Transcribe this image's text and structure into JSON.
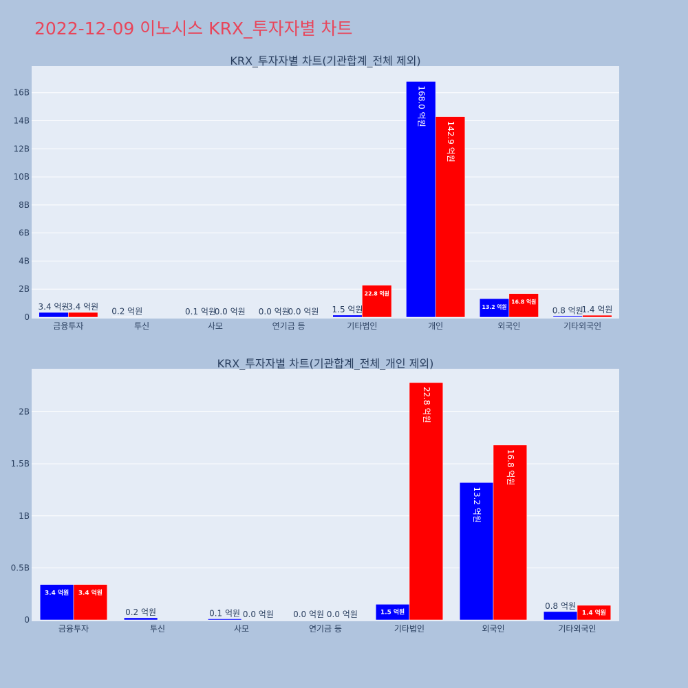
{
  "page_title": "2022-12-09 이노시스 KRX_투자자별 차트",
  "colors": {
    "title": "#e8455a",
    "series_a": "#0000ff",
    "series_b": "#ff0000",
    "plot_bg": "#e5ecf6",
    "page_bg": "#b0c4de"
  },
  "chart_data": [
    {
      "type": "bar",
      "title": "KRX_투자자별 차트(기관합계_전체 제외)",
      "categories": [
        "금융투자",
        "투신",
        "사모",
        "연기금 등",
        "기타법인",
        "개인",
        "외국인",
        "기타외국인"
      ],
      "series": [
        {
          "values": [
            340000000,
            20000000,
            10000000,
            0,
            150000000,
            16800000000,
            1320000000,
            80000000
          ],
          "labels": [
            "3.4 억원",
            "0.2 억원",
            "0.1 억원",
            "0.0 억원",
            "1.5 억원",
            "168.0 억원",
            "13.2 억원",
            "0.8 억원"
          ]
        },
        {
          "values": [
            340000000,
            0,
            0,
            0,
            2280000000,
            14290000000,
            1680000000,
            140000000
          ],
          "labels": [
            "3.4 억원",
            "",
            "0.0 억원",
            "0.0 억원",
            "22.8 억원",
            "142.9 억원",
            "16.8 억원",
            "1.4 억원"
          ]
        }
      ],
      "ylim": [
        0,
        17800000000
      ],
      "yticks": [
        0,
        2000000000,
        4000000000,
        6000000000,
        8000000000,
        10000000000,
        12000000000,
        14000000000,
        16000000000
      ],
      "ytick_labels": [
        "0",
        "2B",
        "4B",
        "6B",
        "8B",
        "10B",
        "12B",
        "14B",
        "16B"
      ],
      "grid": true
    },
    {
      "type": "bar",
      "title": "KRX_투자자별 차트(기관합계_전체_개인 제외)",
      "categories": [
        "금융투자",
        "투신",
        "사모",
        "연기금 등",
        "기타법인",
        "외국인",
        "기타외국인"
      ],
      "series": [
        {
          "values": [
            340000000,
            20000000,
            10000000,
            0,
            150000000,
            1320000000,
            80000000
          ],
          "labels": [
            "3.4 억원",
            "0.2 억원",
            "0.1 억원",
            "0.0 억원",
            "1.5 억원",
            "13.2 억원",
            "0.8 억원"
          ]
        },
        {
          "values": [
            340000000,
            0,
            0,
            0,
            2280000000,
            1680000000,
            140000000
          ],
          "labels": [
            "3.4 억원",
            "",
            "0.0 억원",
            "0.0 억원",
            "22.8 억원",
            "16.8 억원",
            "1.4 억원"
          ]
        }
      ],
      "ylim": [
        0,
        2400000000
      ],
      "yticks": [
        0,
        500000000,
        1000000000,
        1500000000,
        2000000000
      ],
      "ytick_labels": [
        "0",
        "0.5B",
        "1B",
        "1.5B",
        "2B"
      ],
      "grid": true
    }
  ]
}
